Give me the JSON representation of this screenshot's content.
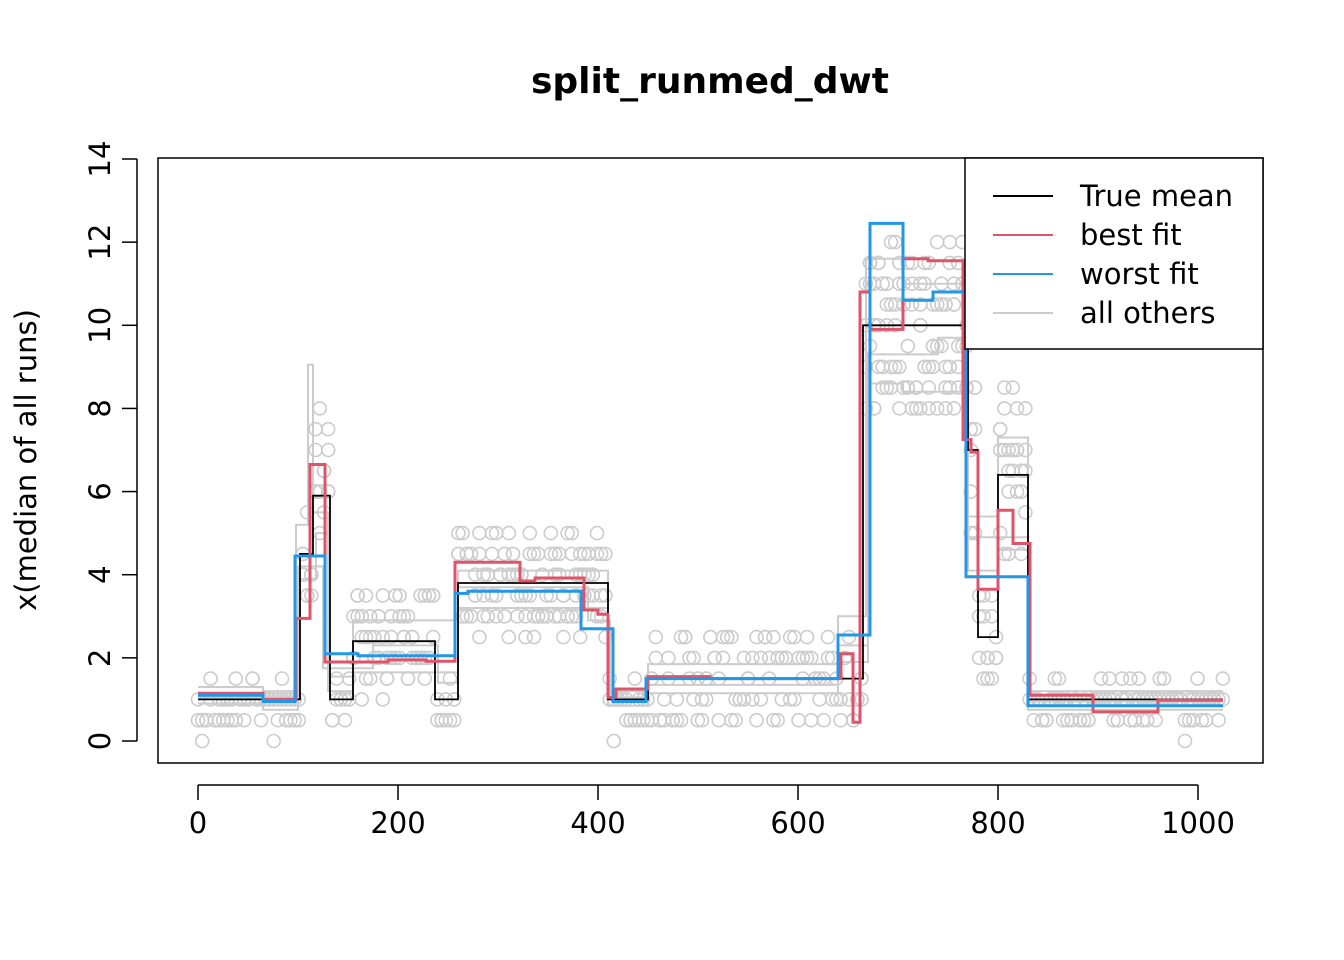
{
  "chart_data": {
    "type": "line",
    "title": "split_runmed_dwt",
    "xlabel": "",
    "ylabel": "x(median of all runs)",
    "xlim": [
      -10,
      1065
    ],
    "ylim": [
      -0.5,
      14.0
    ],
    "xticks": [
      0,
      200,
      400,
      600,
      800,
      1000
    ],
    "yticks": [
      0,
      2,
      4,
      6,
      8,
      10,
      12,
      14
    ],
    "grid": false,
    "legend_position": "top-right",
    "colors": {
      "true_mean": "#000000",
      "best_fit": "#df536b",
      "worst_fit": "#2297e6",
      "others": "#cccccc"
    },
    "legend": [
      {
        "label": "True mean",
        "color": "#000000"
      },
      {
        "label": "best fit",
        "color": "#df536b"
      },
      {
        "label": "worst fit",
        "color": "#2297e6"
      },
      {
        "label": "all others",
        "color": "#cccccc"
      }
    ],
    "series": [
      {
        "name": "True mean",
        "color": "#000000",
        "steps": [
          [
            0,
            1.0
          ],
          [
            102,
            1.0
          ],
          [
            102,
            4.5
          ],
          [
            115,
            4.5
          ],
          [
            115,
            5.9
          ],
          [
            132,
            5.9
          ],
          [
            132,
            1.0
          ],
          [
            155,
            1.0
          ],
          [
            155,
            2.4
          ],
          [
            237,
            2.4
          ],
          [
            237,
            1.0
          ],
          [
            260,
            1.0
          ],
          [
            260,
            3.8
          ],
          [
            410,
            3.8
          ],
          [
            410,
            1.0
          ],
          [
            450,
            1.0
          ],
          [
            450,
            1.5
          ],
          [
            665,
            1.5
          ],
          [
            665,
            10.0
          ],
          [
            770,
            10.0
          ],
          [
            770,
            7.0
          ],
          [
            780,
            7.0
          ],
          [
            780,
            2.5
          ],
          [
            800,
            2.5
          ],
          [
            800,
            6.4
          ],
          [
            830,
            6.4
          ],
          [
            830,
            1.0
          ],
          [
            1025,
            1.0
          ]
        ]
      },
      {
        "name": "best fit",
        "color": "#df536b",
        "steps": [
          [
            0,
            1.15
          ],
          [
            65,
            1.15
          ],
          [
            65,
            1.0
          ],
          [
            98,
            1.0
          ],
          [
            98,
            2.95
          ],
          [
            112,
            2.95
          ],
          [
            112,
            6.65
          ],
          [
            127,
            6.65
          ],
          [
            127,
            1.9
          ],
          [
            190,
            1.9
          ],
          [
            190,
            1.95
          ],
          [
            228,
            1.95
          ],
          [
            228,
            1.92
          ],
          [
            257,
            1.92
          ],
          [
            257,
            4.3
          ],
          [
            322,
            4.3
          ],
          [
            322,
            3.85
          ],
          [
            337,
            3.85
          ],
          [
            337,
            3.92
          ],
          [
            386,
            3.92
          ],
          [
            386,
            3.15
          ],
          [
            400,
            3.15
          ],
          [
            400,
            3.05
          ],
          [
            410,
            3.05
          ],
          [
            410,
            1.05
          ],
          [
            418,
            1.05
          ],
          [
            418,
            1.25
          ],
          [
            450,
            1.25
          ],
          [
            450,
            1.55
          ],
          [
            512,
            1.55
          ],
          [
            512,
            1.5
          ],
          [
            643,
            1.5
          ],
          [
            643,
            2.1
          ],
          [
            655,
            2.1
          ],
          [
            655,
            0.45
          ],
          [
            662,
            0.45
          ],
          [
            662,
            10.8
          ],
          [
            672,
            10.8
          ],
          [
            672,
            9.9
          ],
          [
            705,
            9.9
          ],
          [
            705,
            11.6
          ],
          [
            730,
            11.6
          ],
          [
            730,
            11.55
          ],
          [
            765,
            11.55
          ],
          [
            765,
            7.25
          ],
          [
            773,
            7.25
          ],
          [
            773,
            6.95
          ],
          [
            780,
            6.95
          ],
          [
            780,
            3.65
          ],
          [
            800,
            3.65
          ],
          [
            800,
            5.55
          ],
          [
            815,
            5.55
          ],
          [
            815,
            4.75
          ],
          [
            832,
            4.75
          ],
          [
            832,
            1.1
          ],
          [
            895,
            1.1
          ],
          [
            895,
            0.7
          ],
          [
            960,
            0.7
          ],
          [
            960,
            0.98
          ],
          [
            1025,
            0.98
          ]
        ]
      },
      {
        "name": "worst fit",
        "color": "#2297e6",
        "steps": [
          [
            0,
            1.1
          ],
          [
            65,
            1.1
          ],
          [
            65,
            0.95
          ],
          [
            97,
            0.95
          ],
          [
            97,
            4.45
          ],
          [
            127,
            4.45
          ],
          [
            127,
            2.1
          ],
          [
            160,
            2.1
          ],
          [
            160,
            2.05
          ],
          [
            257,
            2.05
          ],
          [
            257,
            3.55
          ],
          [
            270,
            3.55
          ],
          [
            270,
            3.6
          ],
          [
            383,
            3.6
          ],
          [
            383,
            2.7
          ],
          [
            415,
            2.7
          ],
          [
            415,
            0.95
          ],
          [
            448,
            0.95
          ],
          [
            448,
            1.5
          ],
          [
            640,
            1.5
          ],
          [
            640,
            2.55
          ],
          [
            672,
            2.55
          ],
          [
            672,
            12.45
          ],
          [
            705,
            12.45
          ],
          [
            705,
            10.6
          ],
          [
            735,
            10.6
          ],
          [
            735,
            10.8
          ],
          [
            768,
            10.8
          ],
          [
            768,
            3.95
          ],
          [
            830,
            3.95
          ],
          [
            830,
            0.85
          ],
          [
            1025,
            0.85
          ]
        ]
      }
    ],
    "others_steps": [
      [
        [
          0,
          1.3
        ],
        [
          65,
          1.3
        ],
        [
          65,
          1.2
        ],
        [
          98,
          1.2
        ],
        [
          98,
          5.2
        ],
        [
          110,
          5.2
        ],
        [
          110,
          9.05
        ],
        [
          115,
          9.05
        ],
        [
          115,
          5.5
        ],
        [
          130,
          5.5
        ],
        [
          130,
          1.2
        ],
        [
          155,
          1.2
        ],
        [
          155,
          2.9
        ],
        [
          260,
          2.9
        ],
        [
          260,
          4.1
        ],
        [
          410,
          4.1
        ],
        [
          410,
          1.2
        ],
        [
          450,
          1.2
        ],
        [
          450,
          1.85
        ],
        [
          640,
          1.85
        ],
        [
          640,
          3.0
        ],
        [
          668,
          3.0
        ],
        [
          668,
          11.6
        ],
        [
          705,
          11.6
        ],
        [
          705,
          11.0
        ],
        [
          770,
          11.0
        ],
        [
          770,
          5.4
        ],
        [
          800,
          5.4
        ],
        [
          800,
          7.3
        ],
        [
          830,
          7.3
        ],
        [
          830,
          1.2
        ],
        [
          1025,
          1.2
        ]
      ],
      [
        [
          0,
          0.9
        ],
        [
          65,
          0.9
        ],
        [
          65,
          0.75
        ],
        [
          100,
          0.75
        ],
        [
          100,
          3.9
        ],
        [
          118,
          3.9
        ],
        [
          118,
          5.0
        ],
        [
          130,
          5.0
        ],
        [
          130,
          1.55
        ],
        [
          155,
          1.55
        ],
        [
          155,
          1.65
        ],
        [
          260,
          1.65
        ],
        [
          260,
          3.2
        ],
        [
          410,
          3.2
        ],
        [
          410,
          0.85
        ],
        [
          450,
          0.85
        ],
        [
          450,
          1.15
        ],
        [
          640,
          1.15
        ],
        [
          640,
          1.9
        ],
        [
          670,
          1.9
        ],
        [
          670,
          8.6
        ],
        [
          705,
          8.6
        ],
        [
          705,
          8.4
        ],
        [
          770,
          8.4
        ],
        [
          770,
          4.1
        ],
        [
          800,
          4.1
        ],
        [
          800,
          4.6
        ],
        [
          830,
          4.6
        ],
        [
          830,
          0.75
        ],
        [
          1025,
          0.75
        ]
      ],
      [
        [
          0,
          1.05
        ],
        [
          100,
          1.05
        ],
        [
          100,
          4.2
        ],
        [
          125,
          4.2
        ],
        [
          125,
          1.75
        ],
        [
          175,
          1.75
        ],
        [
          175,
          2.3
        ],
        [
          240,
          2.3
        ],
        [
          240,
          1.4
        ],
        [
          260,
          1.4
        ],
        [
          260,
          3.7
        ],
        [
          390,
          3.7
        ],
        [
          390,
          2.9
        ],
        [
          412,
          2.9
        ],
        [
          412,
          1.05
        ],
        [
          450,
          1.05
        ],
        [
          450,
          1.35
        ],
        [
          640,
          1.35
        ],
        [
          640,
          2.3
        ],
        [
          670,
          2.3
        ],
        [
          670,
          9.3
        ],
        [
          740,
          9.3
        ],
        [
          740,
          9.7
        ],
        [
          768,
          9.7
        ],
        [
          768,
          4.9
        ],
        [
          830,
          4.9
        ],
        [
          830,
          0.95
        ],
        [
          1025,
          0.95
        ]
      ]
    ],
    "scatter_color": "#cccccc"
  }
}
